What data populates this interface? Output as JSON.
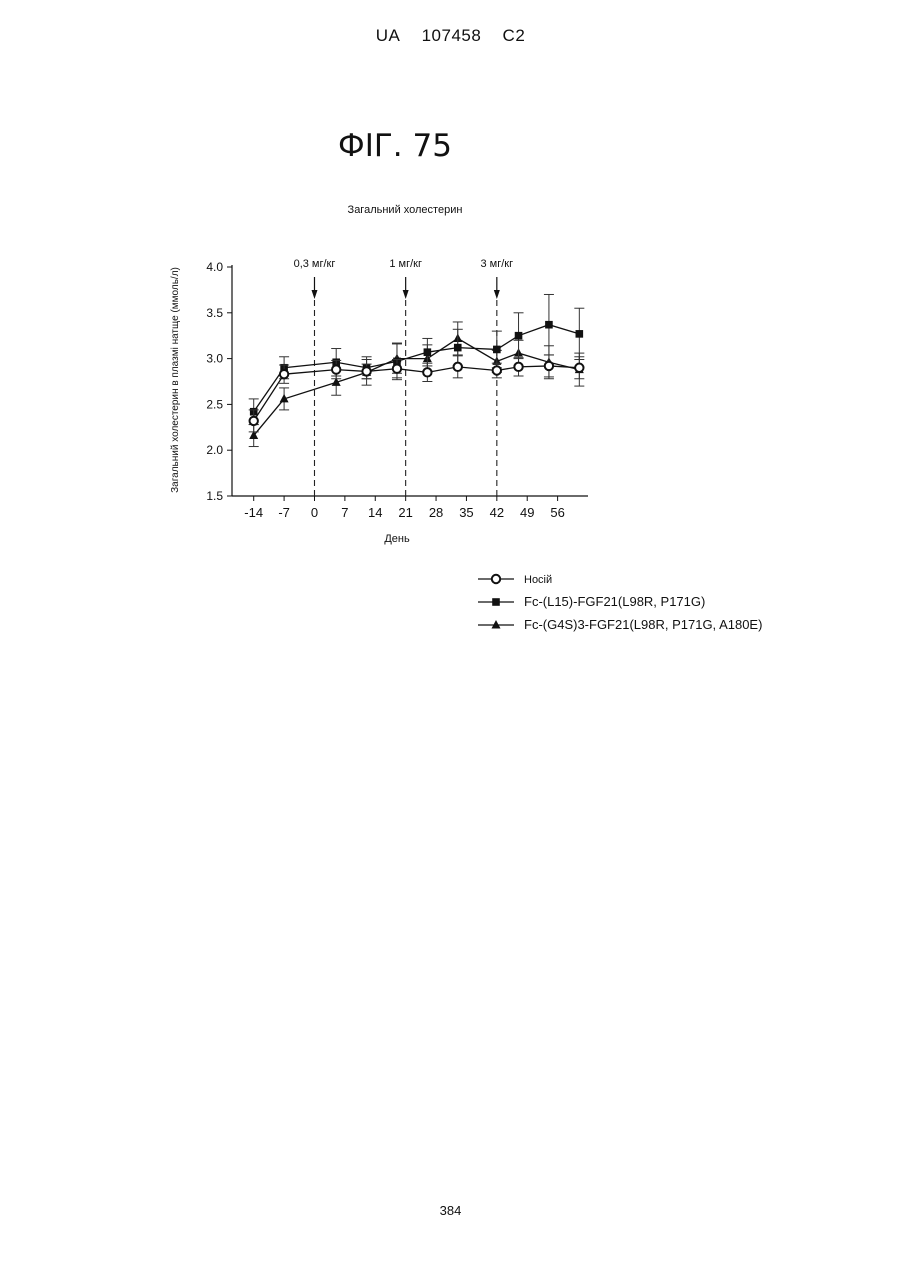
{
  "header": {
    "country": "UA",
    "number": "107458",
    "kind": "C2"
  },
  "figure": {
    "title": "ФІГ. 75"
  },
  "page_number": "384",
  "chart_data": {
    "type": "line",
    "title": "Загальний холестерин",
    "xlabel": "День",
    "ylabel": "Загальний холестерин в плазмі натще  (ммоль/л)",
    "x_ticks": [
      -14,
      -7,
      0,
      7,
      14,
      21,
      28,
      35,
      42,
      49,
      56
    ],
    "xlim": [
      -19,
      63
    ],
    "ylim": [
      1.5,
      4.0
    ],
    "y_ticks": [
      "1.5",
      "2.0",
      "2.5",
      "3.0",
      "3.5",
      "4.0"
    ],
    "grid": false,
    "legend_position": "bottom-right",
    "annotations": [
      {
        "label": "0,3 мг/кг",
        "x": 0
      },
      {
        "label": "1 мг/кг",
        "x": 21
      },
      {
        "label": "3 мг/кг",
        "x": 42
      }
    ],
    "series": [
      {
        "name": "Носій",
        "marker": "open-circle",
        "x": [
          -14,
          -7,
          5,
          12,
          19,
          26,
          33,
          42,
          47,
          54,
          61
        ],
        "y": [
          2.32,
          2.83,
          2.88,
          2.86,
          2.89,
          2.85,
          2.91,
          2.87,
          2.91,
          2.92,
          2.9
        ],
        "err": [
          0.12,
          0.1,
          0.1,
          0.08,
          0.1,
          0.1,
          0.12,
          0.08,
          0.1,
          0.12,
          0.12
        ]
      },
      {
        "name": "Fc-(L15)-FGF21(L98R, P171G)",
        "marker": "filled-square",
        "x": [
          -14,
          -7,
          5,
          12,
          19,
          26,
          33,
          42,
          47,
          54,
          61
        ],
        "y": [
          2.42,
          2.9,
          2.96,
          2.9,
          2.97,
          3.07,
          3.12,
          3.1,
          3.25,
          3.37,
          3.27
        ],
        "err": [
          0.14,
          0.12,
          0.15,
          0.12,
          0.2,
          0.15,
          0.2,
          0.2,
          0.25,
          0.33,
          0.28
        ]
      },
      {
        "name": "Fc-(G4S)3-FGF21(L98R, P171G, A180E)",
        "marker": "filled-triangle",
        "x": [
          -14,
          -7,
          5,
          12,
          19,
          26,
          33,
          42,
          47,
          54,
          61
        ],
        "y": [
          2.16,
          2.56,
          2.74,
          2.85,
          3.0,
          3.0,
          3.22,
          2.97,
          3.06,
          2.96,
          2.88
        ],
        "err": [
          0.12,
          0.12,
          0.14,
          0.14,
          0.16,
          0.15,
          0.18,
          0.12,
          0.14,
          0.18,
          0.18
        ]
      }
    ]
  }
}
